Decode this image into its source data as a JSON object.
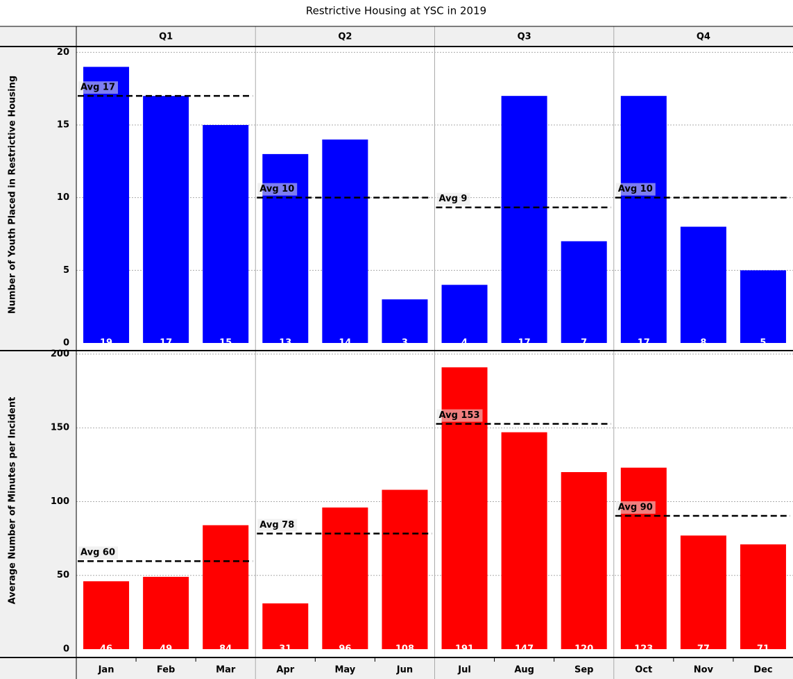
{
  "chart_data": {
    "type": "bar",
    "title": "Restrictive Housing at YSC in 2019",
    "categories": [
      "Jan",
      "Feb",
      "Mar",
      "Apr",
      "May",
      "Jun",
      "Jul",
      "Aug",
      "Sep",
      "Oct",
      "Nov",
      "Dec"
    ],
    "groups": [
      "Q1",
      "Q2",
      "Q3",
      "Q4"
    ],
    "grid": true,
    "panels": [
      {
        "ylabel": "Number of Youth Placed in Restrictive Housing",
        "color": "#0000ff",
        "values": [
          19,
          17,
          15,
          13,
          14,
          3,
          4,
          17,
          7,
          17,
          8,
          5
        ],
        "ylim": [
          0,
          20.4
        ],
        "yticks": [
          0,
          5,
          10,
          15,
          20
        ],
        "averages": [
          {
            "value": 17,
            "label": "Avg 17"
          },
          {
            "value": 10,
            "label": "Avg 10"
          },
          {
            "value": 9.33,
            "label": "Avg 9"
          },
          {
            "value": 10,
            "label": "Avg 10"
          }
        ]
      },
      {
        "ylabel": "Average Number of Minutes per Incident",
        "color": "#ff0000",
        "values": [
          46,
          49,
          84,
          31,
          96,
          108,
          191,
          147,
          120,
          123,
          77,
          71
        ],
        "ylim": [
          0,
          201.4
        ],
        "yticks": [
          0,
          50,
          100,
          150,
          200
        ],
        "averages": [
          {
            "value": 59.67,
            "label": "Avg 60"
          },
          {
            "value": 78.33,
            "label": "Avg 78"
          },
          {
            "value": 152.67,
            "label": "Avg 153"
          },
          {
            "value": 90.33,
            "label": "Avg 90"
          }
        ]
      }
    ]
  }
}
